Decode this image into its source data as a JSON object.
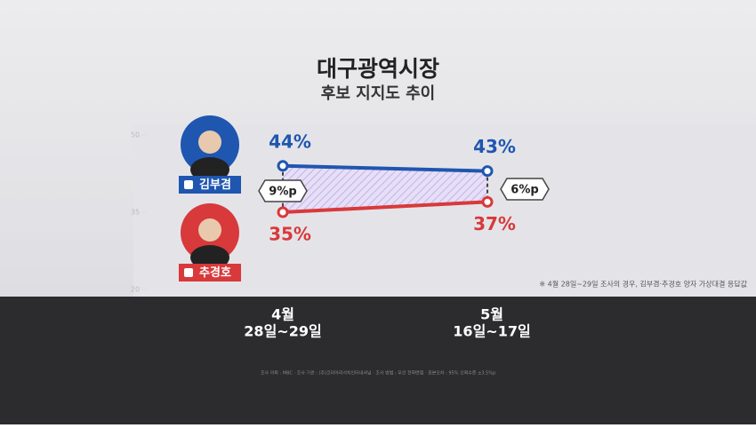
{
  "chart_data": {
    "type": "line",
    "title": "대구광역시장",
    "subtitle": "후보 지지도 추이",
    "categories": [
      [
        "4월",
        "28일~29일"
      ],
      [
        "5월",
        "16일~17일"
      ]
    ],
    "ylim": [
      20,
      50
    ],
    "yticks": [
      20,
      35,
      50
    ],
    "series": [
      {
        "name": "김부겸",
        "color": "#1f56b0",
        "values": [
          44,
          43
        ],
        "value_labels": [
          "44%",
          "43%"
        ]
      },
      {
        "name": "추경호",
        "color": "#d8393b",
        "values": [
          35,
          37
        ],
        "value_labels": [
          "35%",
          "37%"
        ]
      }
    ],
    "gaps": [
      9,
      6
    ],
    "gap_labels": [
      "9%p",
      "6%p"
    ],
    "note": "※ 4월 28일~29일 조사의 경우, 김부겸·추경호 양자 가상대결 응답값",
    "source": "조사 의뢰 : MBC · 조사 기관 : (주)코리아리서치인터내셔널 · 조사 방법 : 무선 전화면접 · 표본오차 : 95% 신뢰수준 ±3.5%p"
  }
}
